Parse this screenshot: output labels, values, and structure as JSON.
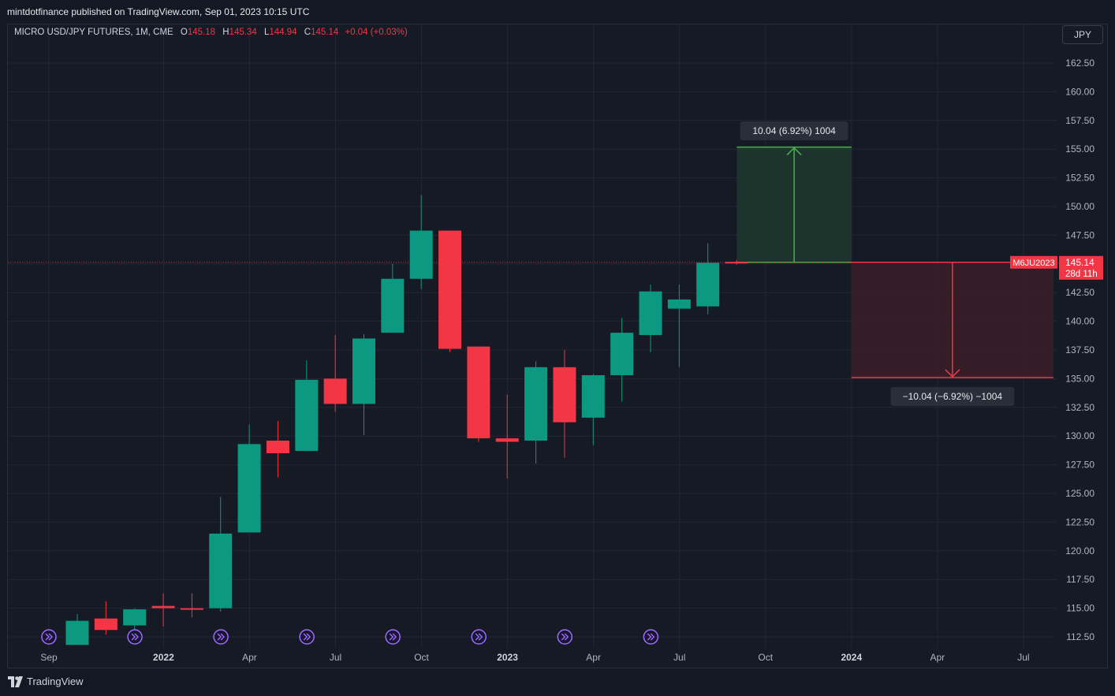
{
  "header": {
    "published": "mintdotfinance published on TradingView.com, Sep 01, 2023 10:15 UTC"
  },
  "legend": {
    "symbol": "MICRO USD/JPY FUTURES, 1M, CME",
    "o_label": "O",
    "o_value": "145.18",
    "h_label": "H",
    "h_value": "145.34",
    "l_label": "L",
    "l_value": "144.94",
    "c_label": "C",
    "c_value": "145.14",
    "change": "+0.04 (+0.03%)"
  },
  "currency_button": "JPY",
  "footer": {
    "brand": "TradingView",
    "logo_icon": "tradingview-logo-icon"
  },
  "colors": {
    "up": "#0c9981",
    "down": "#f23645",
    "grid": "#232735",
    "target_zone": "#1f3a2e",
    "stop_zone": "#3a1f28",
    "target_line": "#4caf50",
    "stop_line": "#f23645",
    "event_icon": "#9b6dff"
  },
  "chart_data": {
    "type": "candlestick",
    "ylim": [
      111.5,
      164.5
    ],
    "y_ticks": [
      "112.50",
      "115.00",
      "117.50",
      "120.00",
      "122.50",
      "125.00",
      "127.50",
      "130.00",
      "132.50",
      "135.00",
      "137.50",
      "140.00",
      "142.50",
      "145.00",
      "147.50",
      "150.00",
      "152.50",
      "155.00",
      "157.50",
      "160.00",
      "162.50"
    ],
    "x_ticks": [
      {
        "label": "Sep",
        "date": "2021-09",
        "bold": false
      },
      {
        "label": "2022",
        "date": "2022-01",
        "bold": true
      },
      {
        "label": "Apr",
        "date": "2022-04",
        "bold": false
      },
      {
        "label": "Jul",
        "date": "2022-07",
        "bold": false
      },
      {
        "label": "Oct",
        "date": "2022-10",
        "bold": false
      },
      {
        "label": "2023",
        "date": "2023-01",
        "bold": true
      },
      {
        "label": "Apr",
        "date": "2023-04",
        "bold": false
      },
      {
        "label": "Jul",
        "date": "2023-07",
        "bold": false
      },
      {
        "label": "Oct",
        "date": "2023-10",
        "bold": false
      },
      {
        "label": "2024",
        "date": "2024-01",
        "bold": true
      },
      {
        "label": "Apr",
        "date": "2024-04",
        "bold": false
      },
      {
        "label": "Jul",
        "date": "2024-07",
        "bold": false
      }
    ],
    "candles": [
      {
        "date": "2021-09",
        "o": 111.8,
        "h": 114.5,
        "l": 111.8,
        "c": 113.9
      },
      {
        "date": "2021-10",
        "o": 114.1,
        "h": 115.6,
        "l": 112.7,
        "c": 113.1
      },
      {
        "date": "2021-11",
        "o": 113.5,
        "h": 115.0,
        "l": 112.5,
        "c": 114.9
      },
      {
        "date": "2021-12",
        "o": 115.2,
        "h": 116.3,
        "l": 113.4,
        "c": 115.0
      },
      {
        "date": "2022-01",
        "o": 115.0,
        "h": 116.3,
        "l": 114.2,
        "c": 114.9
      },
      {
        "date": "2022-02",
        "o": 115.0,
        "h": 124.7,
        "l": 114.7,
        "c": 121.5
      },
      {
        "date": "2022-03",
        "o": 121.6,
        "h": 131.0,
        "l": 121.6,
        "c": 129.3
      },
      {
        "date": "2022-04",
        "o": 129.6,
        "h": 131.3,
        "l": 126.4,
        "c": 128.5
      },
      {
        "date": "2022-05",
        "o": 128.7,
        "h": 136.6,
        "l": 128.7,
        "c": 134.9
      },
      {
        "date": "2022-06",
        "o": 135.0,
        "h": 138.8,
        "l": 132.1,
        "c": 132.8
      },
      {
        "date": "2022-07",
        "o": 132.8,
        "h": 138.9,
        "l": 130.1,
        "c": 138.5
      },
      {
        "date": "2022-08",
        "o": 139.0,
        "h": 145.0,
        "l": 139.0,
        "c": 143.7
      },
      {
        "date": "2022-09",
        "o": 143.7,
        "h": 151.0,
        "l": 142.8,
        "c": 147.9
      },
      {
        "date": "2022-10",
        "o": 147.9,
        "h": 147.9,
        "l": 137.3,
        "c": 137.6
      },
      {
        "date": "2022-11",
        "o": 137.8,
        "h": 137.8,
        "l": 129.5,
        "c": 129.8
      },
      {
        "date": "2022-12",
        "o": 129.8,
        "h": 133.6,
        "l": 126.3,
        "c": 129.5
      },
      {
        "date": "2023-01",
        "o": 129.6,
        "h": 136.5,
        "l": 127.6,
        "c": 136.0
      },
      {
        "date": "2023-02",
        "o": 136.0,
        "h": 137.5,
        "l": 128.1,
        "c": 131.2
      },
      {
        "date": "2023-03",
        "o": 131.6,
        "h": 135.4,
        "l": 129.2,
        "c": 135.3
      },
      {
        "date": "2023-04",
        "o": 135.3,
        "h": 140.3,
        "l": 133.0,
        "c": 139.0
      },
      {
        "date": "2023-05",
        "o": 138.8,
        "h": 143.2,
        "l": 137.3,
        "c": 142.6
      },
      {
        "date": "2023-06",
        "o": 141.1,
        "h": 143.2,
        "l": 136.0,
        "c": 141.9
      },
      {
        "date": "2023-07",
        "o": 141.3,
        "h": 146.8,
        "l": 140.6,
        "c": 145.1
      },
      {
        "date": "2023-08",
        "o": 145.18,
        "h": 145.34,
        "l": 144.94,
        "c": 145.14
      }
    ],
    "events_dates": [
      "2021-09",
      "2021-12",
      "2022-03",
      "2022-06",
      "2022-09",
      "2022-12",
      "2023-03",
      "2023-06"
    ],
    "price_line": 145.14,
    "position": {
      "entry": 145.14,
      "target": 155.18,
      "stop": 135.1,
      "start_date": "2023-09",
      "split_date": "2024-01",
      "end_date": "2024-07",
      "target_label": "10.04 (6.92%) 1004",
      "stop_label": "−10.04 (−6.92%) −1004"
    },
    "price_tag": {
      "symbol": "M6JU2023",
      "price": "145.14",
      "countdown": "28d 11h"
    }
  }
}
